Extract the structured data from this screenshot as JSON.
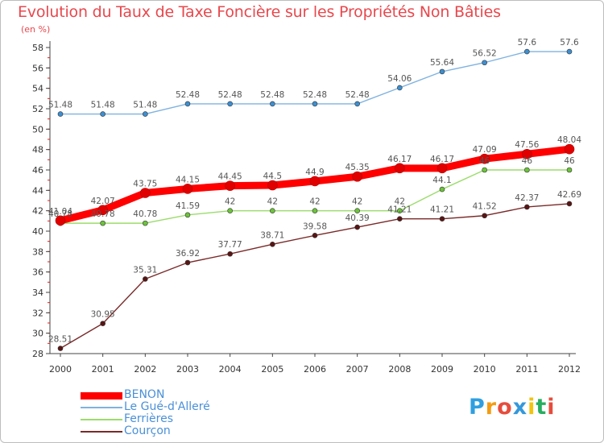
{
  "title": "Evolution du Taux de Taxe Foncière sur les Propriétés Non Bâties",
  "subtitle": "(en %)",
  "logo": {
    "letters": [
      "P",
      "r",
      "o",
      "x",
      "i",
      "t",
      "i"
    ],
    "colors": [
      "#2f9fe0",
      "#f39c12",
      "#e74c3c",
      "#3498db",
      "#f1c40f",
      "#27ae60",
      "#e74c3c"
    ]
  },
  "chart_data": {
    "type": "line",
    "title": "Evolution du Taux de Taxe Foncière sur les Propriétés Non Bâties",
    "ylabel": "(en %)",
    "xlabel": "",
    "ylim": [
      28,
      58
    ],
    "yticks": [
      28,
      30,
      32,
      34,
      36,
      38,
      40,
      42,
      44,
      46,
      48,
      50,
      52,
      54,
      56,
      58
    ],
    "grid": false,
    "legend_position": "bottom-left",
    "categories": [
      "2000",
      "2001",
      "2002",
      "2003",
      "2004",
      "2005",
      "2006",
      "2007",
      "2008",
      "2009",
      "2010",
      "2011",
      "2012"
    ],
    "series": [
      {
        "name": "BENON",
        "color": "#ff0000",
        "marker": "#e00000",
        "thick": true,
        "values": [
          41.04,
          42.07,
          43.75,
          44.15,
          44.45,
          44.5,
          44.9,
          45.35,
          46.17,
          46.17,
          47.09,
          47.56,
          48.04
        ],
        "labels": [
          "41.04",
          "42.07",
          "43.75",
          "44.15",
          "44.45",
          "44.5",
          "44.9",
          "45.35",
          "46.17",
          "46.17",
          "47.09",
          "47.56",
          "48.04"
        ]
      },
      {
        "name": "Le Gué-d'Alleré",
        "color": "#7fb2e0",
        "marker": "#3d8fd0",
        "thick": false,
        "values": [
          51.48,
          51.48,
          51.48,
          52.48,
          52.48,
          52.48,
          52.48,
          52.48,
          54.06,
          55.64,
          56.52,
          57.6,
          57.6
        ],
        "labels": [
          "51.48",
          "51.48",
          "51.48",
          "52.48",
          "52.48",
          "52.48",
          "52.48",
          "52.48",
          "54.06",
          "55.64",
          "56.52",
          "57.6",
          "57.6"
        ]
      },
      {
        "name": "Ferrières",
        "color": "#9bdc6b",
        "marker": "#6cc43a",
        "thick": false,
        "values": [
          40.78,
          40.78,
          40.78,
          41.59,
          42,
          42,
          42,
          42,
          42,
          44.1,
          46,
          46,
          46
        ],
        "labels": [
          "40.78",
          "40.78",
          "40.78",
          "41.59",
          "42",
          "42",
          "42",
          "42",
          "42",
          "44.1",
          "46",
          "46",
          "46"
        ]
      },
      {
        "name": "Courçon",
        "color": "#7a2a2a",
        "marker": "#5a1414",
        "thick": false,
        "values": [
          28.51,
          30.95,
          35.31,
          36.92,
          37.77,
          38.71,
          39.58,
          40.39,
          41.21,
          41.21,
          41.52,
          42.37,
          42.69
        ],
        "labels": [
          "28.51",
          "30.95",
          "35.31",
          "36.92",
          "37.77",
          "38.71",
          "39.58",
          "40.39",
          "41.21",
          "41.21",
          "41.52",
          "42.37",
          "42.69"
        ]
      }
    ]
  }
}
